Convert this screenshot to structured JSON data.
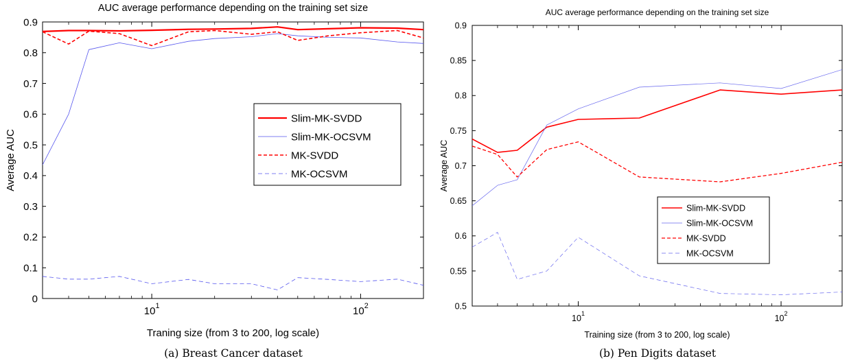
{
  "chart_data": [
    {
      "type": "line",
      "title": "AUC average performance depending on the training set size",
      "xlabel": "Traning size (from 3 to 200, log scale)",
      "ylabel": "Average AUC",
      "caption": "(a)  Breast Cancer dataset",
      "x_scale": "log",
      "xlim": [
        3,
        200
      ],
      "ylim": [
        0,
        0.9
      ],
      "x_ticks": [
        {
          "v": 10,
          "base": "10",
          "exp": "1"
        },
        {
          "v": 100,
          "base": "10",
          "exp": "2"
        }
      ],
      "y_ticks": [
        0,
        0.1,
        0.2,
        0.3,
        0.4,
        0.5,
        0.6,
        0.7,
        0.8,
        0.9
      ],
      "y_tick_labels": [
        "0",
        "0.1",
        "0.2",
        "0.3",
        "0.4",
        "0.5",
        "0.6",
        "0.7",
        "0.8",
        "0.9"
      ],
      "grid": false,
      "legend_position": "center-right",
      "x": [
        3,
        4,
        5,
        7,
        10,
        15,
        20,
        30,
        40,
        50,
        70,
        100,
        150,
        200
      ],
      "series": [
        {
          "name": "Slim-MK-SVDD",
          "color": "#ff0000",
          "style": "solid",
          "width": 2.2,
          "values": [
            0.869,
            0.872,
            0.872,
            0.871,
            0.873,
            0.876,
            0.877,
            0.879,
            0.884,
            0.875,
            0.878,
            0.881,
            0.88,
            0.875
          ]
        },
        {
          "name": "Slim-MK-OCSVM",
          "color": "#5555ee",
          "style": "solid",
          "width": 0.8,
          "values": [
            0.435,
            0.6,
            0.81,
            0.832,
            0.813,
            0.837,
            0.846,
            0.852,
            0.862,
            0.855,
            0.85,
            0.848,
            0.835,
            0.83
          ]
        },
        {
          "name": "MK-SVDD",
          "color": "#ff0000",
          "style": "dashed",
          "width": 1.6,
          "values": [
            0.868,
            0.828,
            0.87,
            0.862,
            0.823,
            0.868,
            0.872,
            0.86,
            0.868,
            0.84,
            0.855,
            0.865,
            0.872,
            0.848
          ]
        },
        {
          "name": "MK-OCSVM",
          "color": "#5555ee",
          "style": "dashed",
          "width": 0.8,
          "values": [
            0.072,
            0.063,
            0.063,
            0.072,
            0.048,
            0.062,
            0.048,
            0.048,
            0.028,
            0.068,
            0.062,
            0.055,
            0.063,
            0.043
          ]
        }
      ]
    },
    {
      "type": "line",
      "title": "AUC average performance depending on the training set size",
      "xlabel": "Training size (from 3 to 200, log scale)",
      "ylabel": "Average AUC",
      "caption": "(b)  Pen Digits dataset",
      "x_scale": "log",
      "xlim": [
        3,
        200
      ],
      "ylim": [
        0.5,
        0.9
      ],
      "x_ticks": [
        {
          "v": 10,
          "base": "10",
          "exp": "1"
        },
        {
          "v": 100,
          "base": "10",
          "exp": "2"
        }
      ],
      "y_ticks": [
        0.5,
        0.55,
        0.6,
        0.65,
        0.7,
        0.75,
        0.8,
        0.85,
        0.9
      ],
      "y_tick_labels": [
        "0.5",
        "0.55",
        "0.6",
        "0.65",
        "0.7",
        "0.75",
        "0.8",
        "0.85",
        "0.9"
      ],
      "grid": false,
      "legend_position": "bottom-right",
      "x": [
        3,
        4,
        5,
        7,
        10,
        20,
        50,
        100,
        200
      ],
      "series": [
        {
          "name": "Slim-MK-SVDD",
          "color": "#ff0000",
          "style": "solid",
          "width": 1.6,
          "values": [
            0.738,
            0.719,
            0.722,
            0.755,
            0.766,
            0.768,
            0.808,
            0.802,
            0.808
          ]
        },
        {
          "name": "Slim-MK-OCSVM",
          "color": "#6666ee",
          "style": "solid",
          "width": 0.7,
          "values": [
            0.643,
            0.672,
            0.68,
            0.758,
            0.781,
            0.812,
            0.818,
            0.81,
            0.837
          ]
        },
        {
          "name": "MK-SVDD",
          "color": "#ff0000",
          "style": "dashed",
          "width": 1.3,
          "values": [
            0.728,
            0.716,
            0.684,
            0.723,
            0.734,
            0.684,
            0.677,
            0.689,
            0.705
          ]
        },
        {
          "name": "MK-OCSVM",
          "color": "#6666ee",
          "style": "dashed",
          "width": 0.7,
          "values": [
            0.584,
            0.605,
            0.538,
            0.55,
            0.598,
            0.543,
            0.518,
            0.516,
            0.52
          ]
        }
      ]
    }
  ]
}
